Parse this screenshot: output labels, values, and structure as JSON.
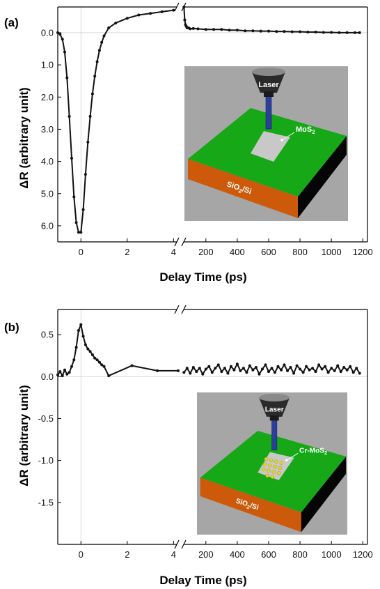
{
  "figure": {
    "panels": [
      {
        "label": "(a)",
        "ylabel": "ΔR (arbitrary unit)",
        "xlabel": "Delay Time (ps)",
        "inset": {
          "laser_label": "Laser",
          "flake_label": "MoS",
          "flake_sub": "2",
          "substrate_label": "SiO",
          "substrate_sub": "2",
          "substrate_suffix": "/Si",
          "flake_dots": false
        }
      },
      {
        "label": "(b)",
        "ylabel": "ΔR (arbitrary unit)",
        "xlabel": "Delay Time (ps)",
        "inset": {
          "laser_label": "Laser",
          "flake_label": "Cr-MoS",
          "flake_sub": "2",
          "substrate_label": "SiO",
          "substrate_sub": "2",
          "substrate_suffix": "/Si",
          "flake_dots": true
        }
      }
    ]
  },
  "colors": {
    "line": "#111111",
    "green": "#17a817",
    "orange": "#cc5a0a",
    "gray_bg": "#a6a6a6",
    "flake": "#c8c8c8",
    "beam": "#2b3f9a",
    "dots": "#e8d81a"
  },
  "chart_data": [
    {
      "type": "line",
      "axis_scale": "broken",
      "y_inverted": true,
      "ylim": [
        6.5,
        -0.8
      ],
      "yticks": [
        0.0,
        1.0,
        2.0,
        3.0,
        4.0,
        5.0,
        6.0
      ],
      "ytick_labels": [
        "0.0",
        "1.0",
        "2.0",
        "3.0",
        "4.0",
        "5.0",
        "6.0"
      ],
      "xlim_left": [
        -1.0,
        4.2
      ],
      "xticks_left": [
        0,
        2,
        4
      ],
      "xlim_right": [
        50,
        1230
      ],
      "xticks_right": [
        200,
        400,
        600,
        800,
        1000,
        1200
      ],
      "series": [
        {
          "left": {
            "x": [
              -1.0,
              -0.9,
              -0.8,
              -0.7,
              -0.6,
              -0.5,
              -0.4,
              -0.3,
              -0.2,
              -0.1,
              0.0,
              0.1,
              0.2,
              0.3,
              0.4,
              0.5,
              0.6,
              0.7,
              0.8,
              0.9,
              1.0,
              1.2,
              1.5,
              2.0,
              2.5,
              3.0,
              3.5,
              4.0
            ],
            "y": [
              0.0,
              0.05,
              0.2,
              0.6,
              1.4,
              2.6,
              3.9,
              5.1,
              5.9,
              6.2,
              6.2,
              5.5,
              4.4,
              3.4,
              2.6,
              1.9,
              1.35,
              0.9,
              0.55,
              0.3,
              0.1,
              -0.15,
              -0.3,
              -0.45,
              -0.55,
              -0.6,
              -0.65,
              -0.7
            ]
          },
          "right": {
            "x": [
              60,
              65,
              70,
              75,
              80,
              90,
              100,
              120,
              150,
              200,
              250,
              300,
              350,
              400,
              450,
              500,
              550,
              600,
              650,
              700,
              750,
              800,
              850,
              900,
              950,
              1000,
              1050,
              1100,
              1150,
              1180
            ],
            "y": [
              -0.8,
              -0.4,
              -0.25,
              -0.2,
              -0.15,
              -0.15,
              -0.12,
              -0.13,
              -0.12,
              -0.1,
              -0.1,
              -0.1,
              -0.08,
              -0.08,
              -0.06,
              -0.06,
              -0.05,
              -0.05,
              -0.04,
              -0.04,
              -0.03,
              -0.03,
              -0.02,
              -0.02,
              -0.01,
              -0.01,
              0.0,
              0.0,
              0.0,
              0.0
            ]
          }
        }
      ]
    },
    {
      "type": "line",
      "axis_scale": "broken",
      "ylim": [
        -2.0,
        0.8
      ],
      "yticks": [
        0.5,
        0.0,
        -0.5,
        -1.0,
        -1.5
      ],
      "ytick_labels": [
        "0.5",
        "0.0",
        "-0.5",
        "-1.0",
        "-1.5"
      ],
      "xlim_left": [
        -1.0,
        4.2
      ],
      "xticks_left": [
        0,
        2,
        4
      ],
      "xlim_right": [
        50,
        1230
      ],
      "xticks_right": [
        200,
        400,
        600,
        800,
        1000,
        1200
      ],
      "series": [
        {
          "left": {
            "x": [
              -1.0,
              -0.9,
              -0.8,
              -0.7,
              -0.6,
              -0.5,
              -0.4,
              -0.3,
              -0.2,
              -0.1,
              0.0,
              0.1,
              0.2,
              0.3,
              0.4,
              0.5,
              0.6,
              0.7,
              0.8,
              0.9,
              1.0,
              1.2,
              2.2,
              3.3,
              4.2
            ],
            "y": [
              0.02,
              0.06,
              0.01,
              0.08,
              0.03,
              0.05,
              0.12,
              0.2,
              0.35,
              0.55,
              0.62,
              0.48,
              0.38,
              0.33,
              0.3,
              0.26,
              0.22,
              0.2,
              0.17,
              0.14,
              0.12,
              0.01,
              0.13,
              0.07,
              0.07
            ]
          },
          "right": {
            "x": [
              60,
              80,
              100,
              120,
              140,
              160,
              180,
              200,
              220,
              240,
              260,
              280,
              300,
              320,
              340,
              360,
              380,
              400,
              420,
              440,
              460,
              480,
              500,
              520,
              540,
              560,
              580,
              600,
              620,
              640,
              660,
              680,
              700,
              720,
              740,
              760,
              780,
              800,
              820,
              840,
              860,
              880,
              900,
              920,
              940,
              960,
              980,
              1000,
              1020,
              1040,
              1060,
              1080,
              1100,
              1120,
              1140,
              1160,
              1180
            ],
            "y": [
              0.05,
              0.1,
              0.04,
              0.11,
              0.06,
              0.1,
              0.03,
              0.09,
              0.12,
              0.05,
              0.1,
              0.14,
              0.06,
              0.1,
              0.04,
              0.12,
              0.08,
              0.15,
              0.07,
              0.1,
              0.05,
              0.13,
              0.08,
              0.11,
              0.03,
              0.09,
              0.14,
              0.06,
              0.1,
              0.05,
              0.12,
              0.08,
              0.14,
              0.07,
              0.11,
              0.04,
              0.13,
              0.09,
              0.05,
              0.12,
              0.08,
              0.1,
              0.06,
              0.14,
              0.09,
              0.12,
              0.05,
              0.1,
              0.07,
              0.13,
              0.06,
              0.11,
              0.08,
              0.12,
              0.05,
              0.1,
              0.04
            ]
          }
        }
      ]
    }
  ]
}
